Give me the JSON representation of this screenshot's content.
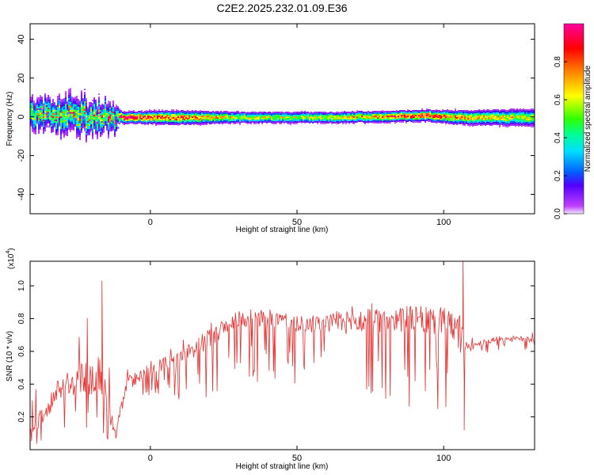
{
  "title": "C2E2.2025.232.01.09.E36",
  "chart_data": [
    {
      "type": "heatmap",
      "xlabel": "Height of straight line (km)",
      "ylabel": "Frequency (Hz)",
      "xlim": [
        -41,
        131
      ],
      "ylim": [
        -50,
        48
      ],
      "x_ticks": [
        "0",
        "50",
        "100"
      ],
      "y_ticks": [
        "40",
        "20",
        "0",
        "-20",
        "-40"
      ],
      "x_tick_values": [
        0,
        50,
        100
      ],
      "y_tick_values": [
        40,
        20,
        0,
        -20,
        -40
      ],
      "colorbar": {
        "label": "Normalized spectral amplitude",
        "range": [
          0.0,
          1.0
        ],
        "ticks": [
          "0.0",
          "0.2",
          "0.4",
          "0.6",
          "0.8"
        ],
        "tick_values": [
          0.0,
          0.2,
          0.4,
          0.6,
          0.8
        ]
      },
      "ridge": [
        {
          "x": -40,
          "center": 2,
          "spread": 7,
          "peak": 0.55
        },
        {
          "x": -25,
          "center": 1,
          "spread": 8,
          "peak": 0.6
        },
        {
          "x": -12,
          "center": 0,
          "spread": 6,
          "peak": 0.65
        },
        {
          "x": -10,
          "center": 0,
          "spread": 2,
          "peak": 0.95
        },
        {
          "x": 10,
          "center": 0,
          "spread": 2.5,
          "peak": 0.8
        },
        {
          "x": 30,
          "center": 0,
          "spread": 2,
          "peak": 0.6
        },
        {
          "x": 60,
          "center": 0,
          "spread": 2,
          "peak": 0.6
        },
        {
          "x": 95,
          "center": 1,
          "spread": 2,
          "peak": 0.9
        },
        {
          "x": 105,
          "center": 0,
          "spread": 2.5,
          "peak": 0.7
        },
        {
          "x": 130,
          "center": 0,
          "spread": 3,
          "peak": 0.6
        }
      ]
    },
    {
      "type": "line",
      "xlabel": "Height of straight line (km)",
      "ylabel": "SNR (10 * v/v)",
      "scale_label": "(x10",
      "scale_exp": "4",
      "xlim": [
        -41,
        131
      ],
      "ylim": [
        0,
        1.15
      ],
      "x_ticks": [
        "0",
        "50",
        "100"
      ],
      "y_ticks": [
        "0.2",
        "0.4",
        "0.6",
        "0.8",
        "1.0"
      ],
      "x_tick_values": [
        0,
        50,
        100
      ],
      "y_tick_values": [
        0.2,
        0.4,
        0.6,
        0.8,
        1.0
      ],
      "series": [
        {
          "color": "#e83030",
          "envelope": [
            {
              "x": -41,
              "base": 0.1,
              "upper": 0.3,
              "lower": 0.02
            },
            {
              "x": -30,
              "base": 0.4,
              "upper": 0.7,
              "lower": 0.05
            },
            {
              "x": -17,
              "base": 0.45,
              "upper": 1.03,
              "lower": 0.05
            },
            {
              "x": -12,
              "base": 0.1,
              "upper": 0.3,
              "lower": 0.03
            },
            {
              "x": -8,
              "base": 0.4,
              "upper": 0.6,
              "lower": 0.25
            },
            {
              "x": 0,
              "base": 0.5,
              "upper": 0.65,
              "lower": 0.3
            },
            {
              "x": 10,
              "base": 0.55,
              "upper": 0.7,
              "lower": 0.3
            },
            {
              "x": 20,
              "base": 0.68,
              "upper": 0.78,
              "lower": 0.3
            },
            {
              "x": 30,
              "base": 0.8,
              "upper": 0.85,
              "lower": 0.4
            },
            {
              "x": 40,
              "base": 0.8,
              "upper": 0.86,
              "lower": 0.4
            },
            {
              "x": 55,
              "base": 0.76,
              "upper": 0.82,
              "lower": 0.4
            },
            {
              "x": 70,
              "base": 0.78,
              "upper": 0.9,
              "lower": 0.3
            },
            {
              "x": 85,
              "base": 0.8,
              "upper": 0.9,
              "lower": 0.25
            },
            {
              "x": 100,
              "base": 0.78,
              "upper": 0.92,
              "lower": 0.2
            },
            {
              "x": 106,
              "base": 0.7,
              "upper": 1.15,
              "lower": 0.12
            },
            {
              "x": 108,
              "base": 0.63,
              "upper": 0.7,
              "lower": 0.58
            },
            {
              "x": 120,
              "base": 0.68,
              "upper": 0.75,
              "lower": 0.6
            },
            {
              "x": 131,
              "base": 0.67,
              "upper": 0.72,
              "lower": 0.6
            }
          ]
        }
      ]
    }
  ]
}
